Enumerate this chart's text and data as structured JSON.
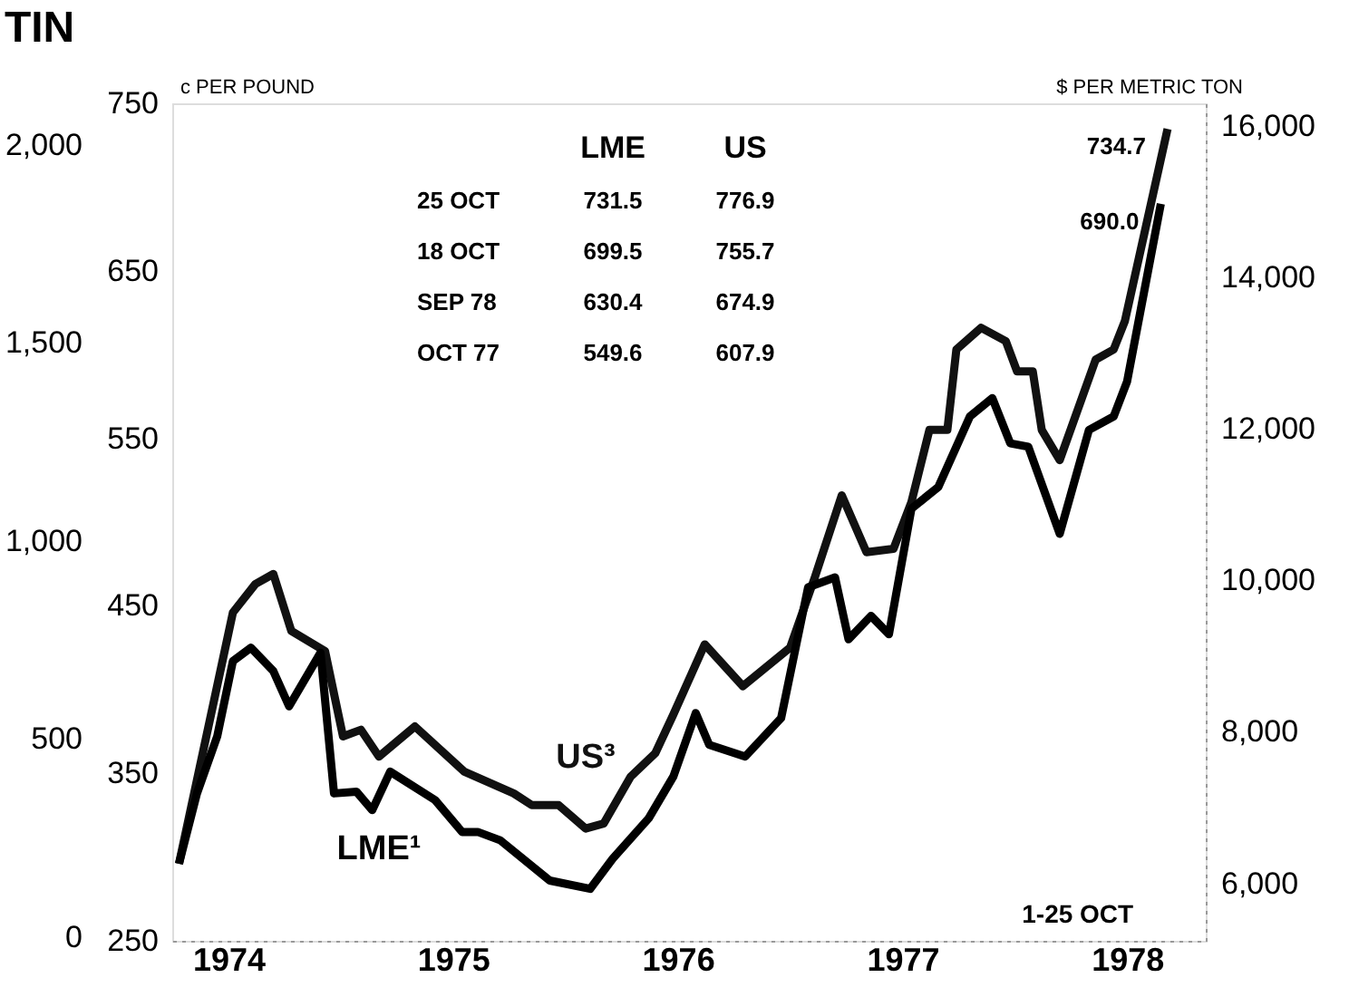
{
  "chart_data": {
    "type": "line",
    "title": "TIN",
    "ylabel": "c PER POUND",
    "y2label": "$ PER METRIC TON",
    "xlim": [
      1974.25,
      1978.85
    ],
    "xticks": [
      {
        "value": 1974.5,
        "label": "1974"
      },
      {
        "value": 1975.5,
        "label": "1975"
      },
      {
        "value": 1976.5,
        "label": "1976"
      },
      {
        "value": 1977.5,
        "label": "1977"
      },
      {
        "value": 1978.5,
        "label": "1978"
      }
    ],
    "ylim": [
      250,
      750
    ],
    "yticks": [
      250,
      350,
      450,
      550,
      650,
      750
    ],
    "y2lim": [
      5240,
      16300
    ],
    "y2ticks": [
      {
        "value": 6000,
        "label": "6,000"
      },
      {
        "value": 8000,
        "label": "8,000"
      },
      {
        "value": 10000,
        "label": "10,000"
      },
      {
        "value": 12000,
        "label": "12,000"
      },
      {
        "value": 14000,
        "label": "14,000"
      },
      {
        "value": 16000,
        "label": "16,000"
      }
    ],
    "y3lim": [
      -10,
      2105
    ],
    "y3ticks": [
      0,
      500,
      {
        "value": 1000,
        "label": "1,000"
      },
      {
        "value": 1500,
        "label": "1,500"
      },
      {
        "value": 2000,
        "label": "2,000"
      }
    ],
    "grid": false,
    "legend": false,
    "marker": "none",
    "line_style": "solid",
    "series": [
      {
        "name": "US³",
        "color": "#111111",
        "x": [
          1974.28,
          1974.52,
          1974.62,
          1974.7,
          1974.78,
          1974.93,
          1975.01,
          1975.09,
          1975.17,
          1975.33,
          1975.55,
          1975.77,
          1975.85,
          1975.97,
          1976.09,
          1976.17,
          1976.29,
          1976.4,
          1976.48,
          1976.62,
          1976.79,
          1977.0,
          1977.11,
          1977.23,
          1977.34,
          1977.46,
          1977.54,
          1977.62,
          1977.7,
          1977.74,
          1977.85,
          1977.96,
          1978.01,
          1978.08,
          1978.12,
          1978.2,
          1978.36,
          1978.44,
          1978.49,
          1978.68
        ],
        "values": [
          296,
          446,
          463,
          469,
          435,
          423,
          372,
          376,
          360,
          378,
          351,
          338,
          331,
          331,
          317,
          320,
          348,
          362,
          385,
          427,
          402,
          425,
          467,
          516,
          482,
          484,
          512,
          555,
          555,
          603,
          616,
          608,
          590,
          590,
          555,
          537,
          597,
          603,
          620,
          734.7
        ]
      },
      {
        "name": "LME¹",
        "color": "#000000",
        "x": [
          1974.28,
          1974.36,
          1974.45,
          1974.52,
          1974.6,
          1974.7,
          1974.77,
          1974.91,
          1974.97,
          1975.07,
          1975.14,
          1975.22,
          1975.42,
          1975.54,
          1975.61,
          1975.71,
          1975.93,
          1976.11,
          1976.21,
          1976.37,
          1976.48,
          1976.58,
          1976.64,
          1976.8,
          1976.96,
          1977.08,
          1977.2,
          1977.26,
          1977.36,
          1977.44,
          1977.54,
          1977.66,
          1977.8,
          1977.9,
          1977.98,
          1978.06,
          1978.2,
          1978.33,
          1978.44,
          1978.5,
          1978.65
        ],
        "values": [
          296,
          338,
          372,
          417,
          425,
          411,
          390,
          422,
          338,
          339,
          328,
          351,
          334,
          315,
          315,
          310,
          286,
          281,
          299,
          323,
          348,
          386,
          367,
          360,
          383,
          461,
          467,
          430,
          444,
          433,
          508,
          521,
          563,
          574,
          547,
          545,
          493,
          555,
          563,
          584,
          690.0
        ]
      }
    ],
    "annotations": [
      "LME",
      "US",
      "25 OCT",
      "731.5",
      "776.9",
      "18 OCT",
      "699.5",
      "755.7",
      "SEP 78",
      "630.4",
      "674.9",
      "OCT 77",
      "549.6",
      "607.9",
      "1-25 OCT",
      {
        "text": "734.7",
        "x": 1978.68,
        "y": 734.7
      },
      {
        "text": "690.0",
        "x": 1978.65,
        "y": 690.0
      }
    ]
  }
}
